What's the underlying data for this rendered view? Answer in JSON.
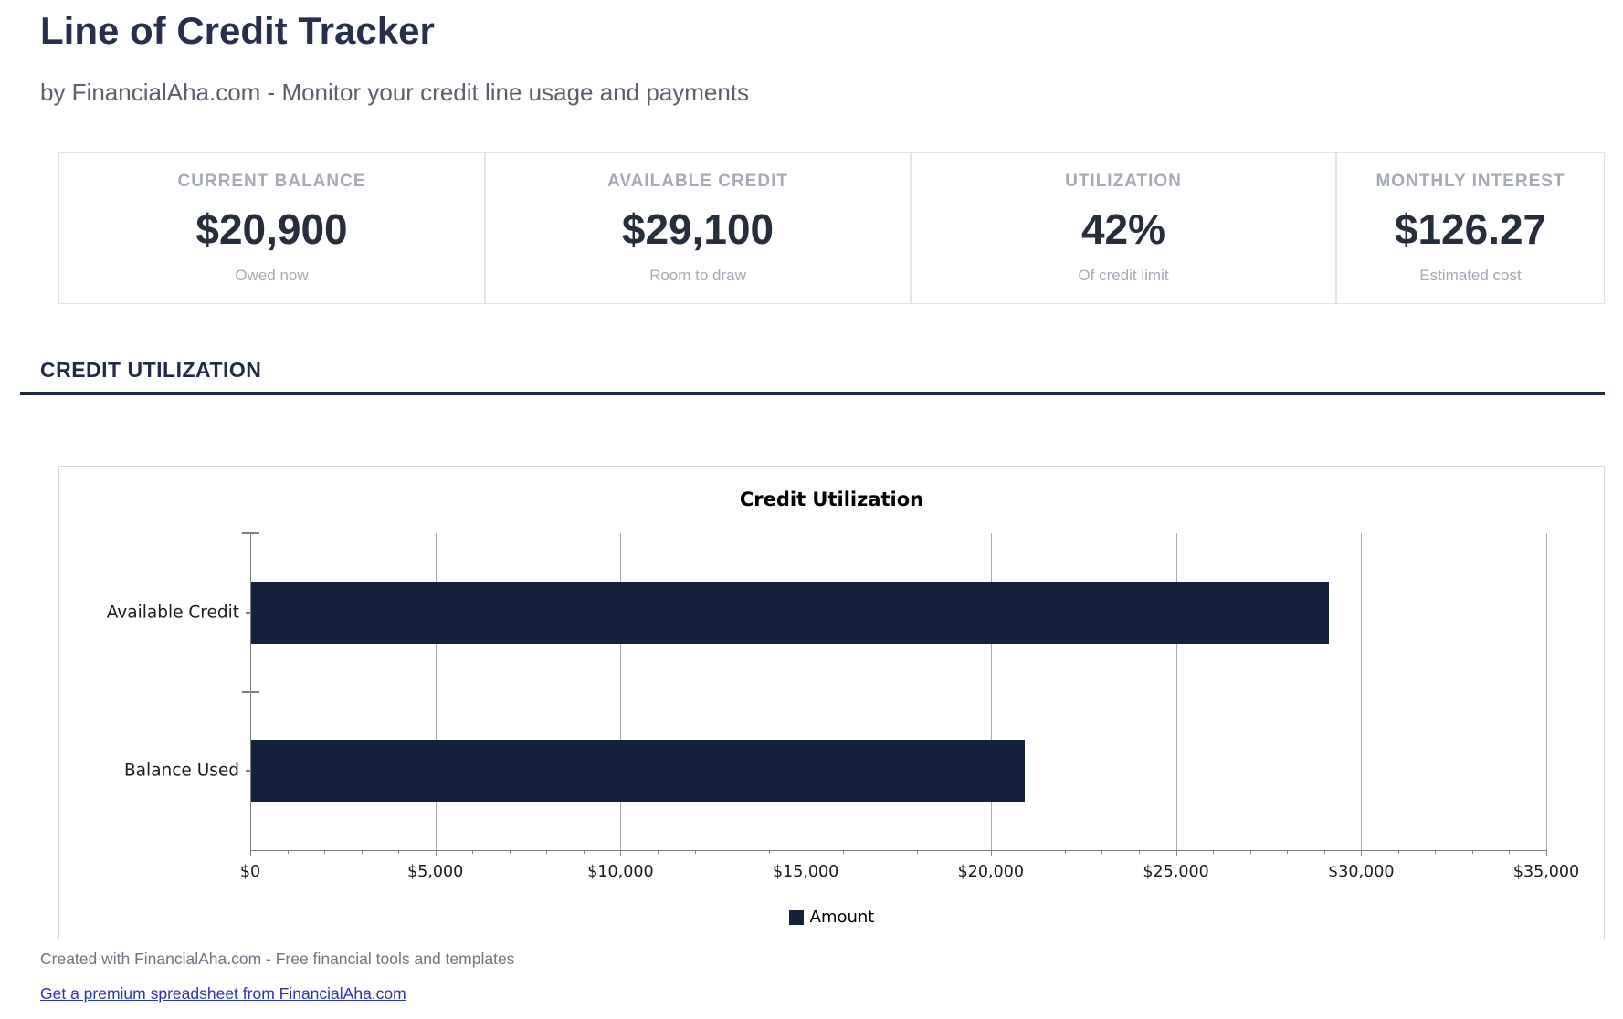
{
  "header": {
    "title": "Line of Credit Tracker",
    "subtitle": "by FinancialAha.com - Monitor your credit line usage and payments"
  },
  "stats": [
    {
      "label": "CURRENT BALANCE",
      "value": "$20,900",
      "sub": "Owed now"
    },
    {
      "label": "AVAILABLE CREDIT",
      "value": "$29,100",
      "sub": "Room to draw"
    },
    {
      "label": "UTILIZATION",
      "value": "42%",
      "sub": "Of credit limit"
    },
    {
      "label": "MONTHLY INTEREST",
      "value": "$126.27",
      "sub": "Estimated cost"
    }
  ],
  "section": {
    "title": "CREDIT UTILIZATION"
  },
  "chart_data": {
    "type": "bar",
    "orientation": "horizontal",
    "title": "Credit Utilization",
    "categories": [
      "Available Credit",
      "Balance Used"
    ],
    "values": [
      29100,
      20900
    ],
    "series_name": "Amount",
    "xlim": [
      0,
      35000
    ],
    "x_major_step": 5000,
    "x_minor_step": 1000,
    "x_tick_labels": [
      "$0",
      "$5,000",
      "$10,000",
      "$15,000",
      "$20,000",
      "$25,000",
      "$30,000",
      "$35,000"
    ],
    "bar_color": "#14213c",
    "grid": true,
    "legend_position": "bottom-center"
  },
  "footer": {
    "credit": "Created with FinancialAha.com - Free financial tools and templates",
    "link_label": "Get a premium spreadsheet from FinancialAha.com"
  },
  "colors": {
    "accent_navy": "#1e2a47",
    "bar_navy": "#14213c",
    "muted_gray": "#a4aab6",
    "link_blue": "#2c34b2"
  }
}
